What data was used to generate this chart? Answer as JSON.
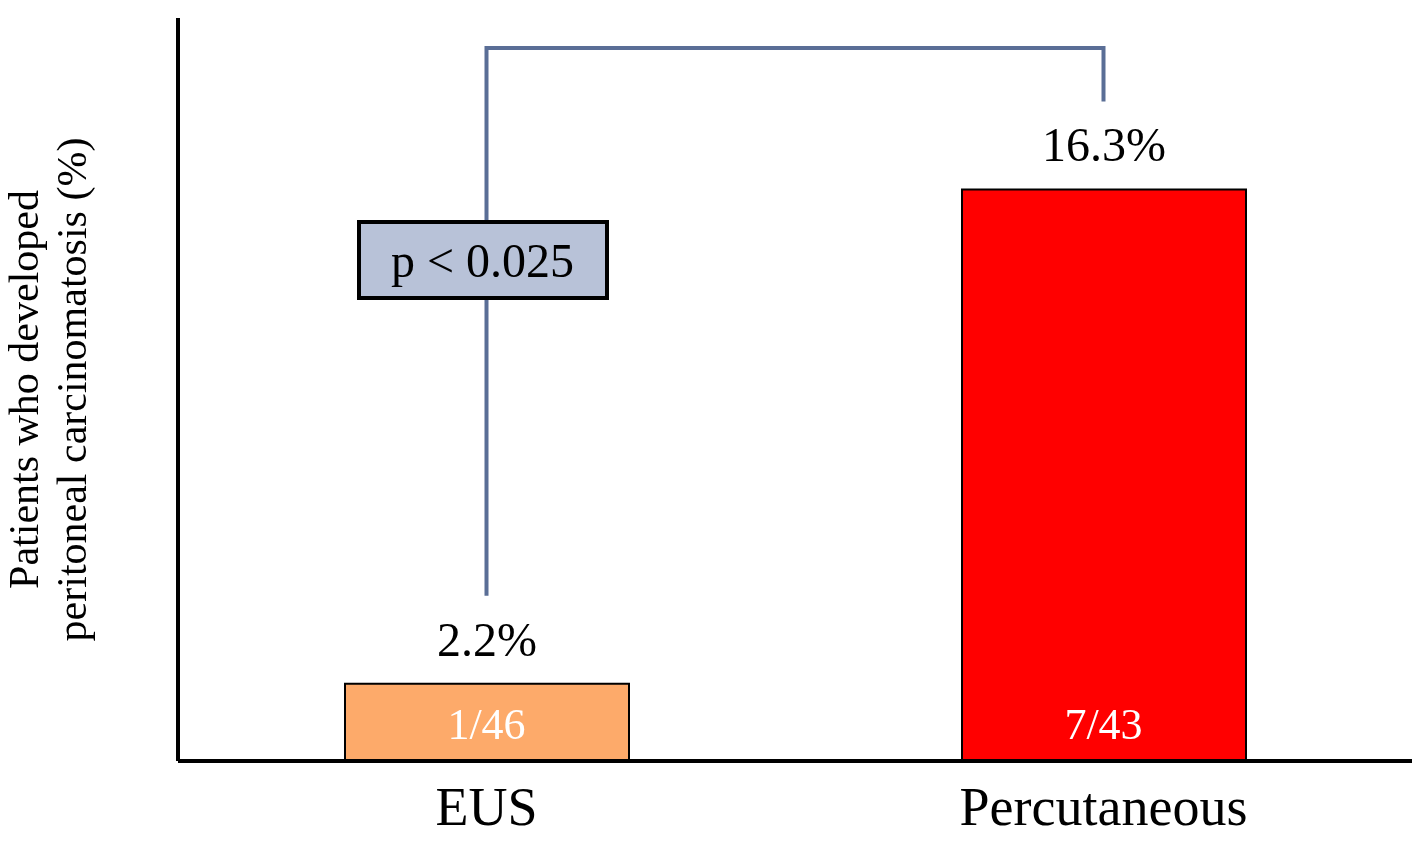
{
  "chart_data": {
    "type": "bar",
    "ylabel": "Patients who developed peritoneal carcinomatosis (%)",
    "categories": [
      "EUS",
      "Percutaneous"
    ],
    "values": [
      2.2,
      16.3
    ],
    "colors": [
      "#fdaa6a",
      "#ff0000"
    ],
    "value_labels": [
      "2.2%",
      "16.3%"
    ],
    "annotations": [
      "p < 0.025",
      "1/46",
      "7/43"
    ],
    "tick_labels": "x",
    "grid": false,
    "legend": false
  }
}
